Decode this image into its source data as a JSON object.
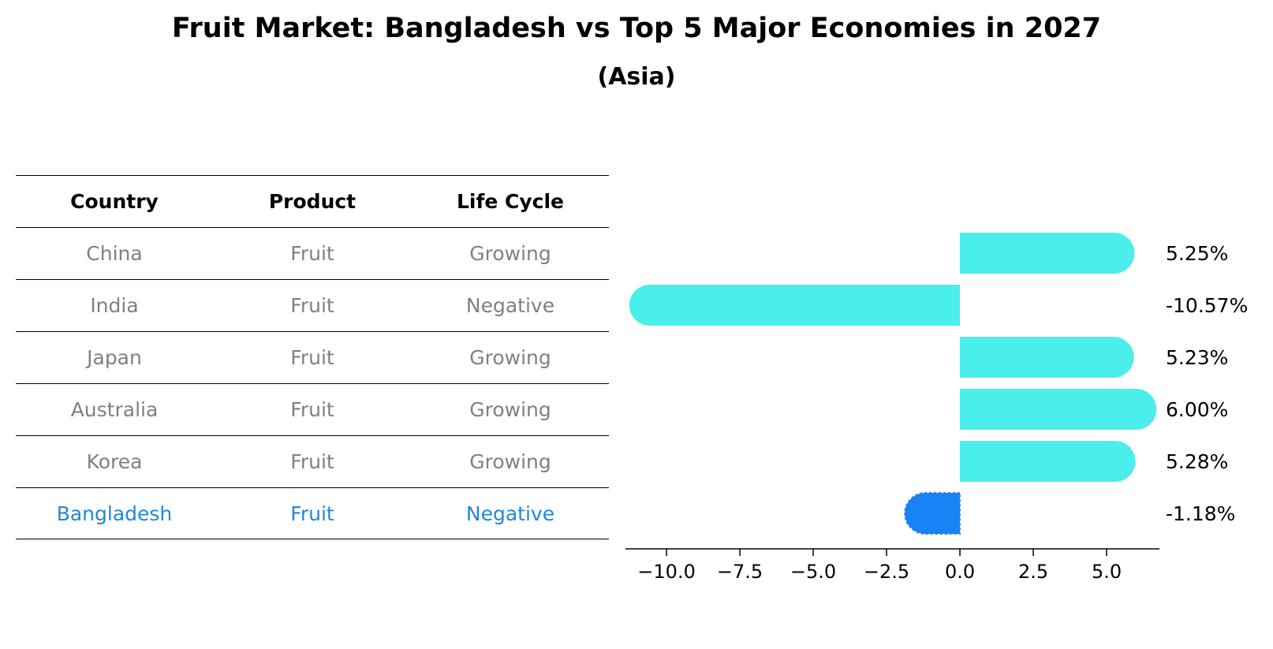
{
  "title": "Fruit Market: Bangladesh vs Top 5 Major Economies in 2027",
  "subtitle": "(Asia)",
  "table": {
    "headers": [
      "Country",
      "Product",
      "Life Cycle"
    ],
    "rows": [
      [
        "China",
        "Fruit",
        "Growing"
      ],
      [
        "India",
        "Fruit",
        "Negative"
      ],
      [
        "Japan",
        "Fruit",
        "Growing"
      ],
      [
        "Australia",
        "Fruit",
        "Growing"
      ],
      [
        "Korea",
        "Fruit",
        "Growing"
      ],
      [
        "Bangladesh",
        "Fruit",
        "Negative"
      ]
    ]
  },
  "colors": {
    "bar": "#4aeeea",
    "highlight_bar": "#1783f4",
    "highlight_text": "#1f87d8",
    "muted_text": "#808080"
  },
  "chart_data": {
    "type": "bar",
    "orientation": "horizontal",
    "categories": [
      "China",
      "India",
      "Japan",
      "Australia",
      "Korea",
      "Bangladesh"
    ],
    "values": [
      5.25,
      -10.57,
      5.23,
      6.0,
      5.28,
      -1.18
    ],
    "value_labels": [
      "5.25%",
      "-10.57%",
      "5.23%",
      "6.00%",
      "5.28%",
      "-1.18%"
    ],
    "highlight": "Bangladesh",
    "xticks": [
      -10.0,
      -7.5,
      -5.0,
      -2.5,
      0.0,
      2.5,
      5.0
    ],
    "xtick_labels": [
      "−10.0",
      "−7.5",
      "−5.0",
      "−2.5",
      "0.0",
      "2.5",
      "5.0"
    ],
    "xlim": [
      -11.4,
      6.8
    ],
    "xlabel": "",
    "ylabel": "",
    "grid": false
  }
}
